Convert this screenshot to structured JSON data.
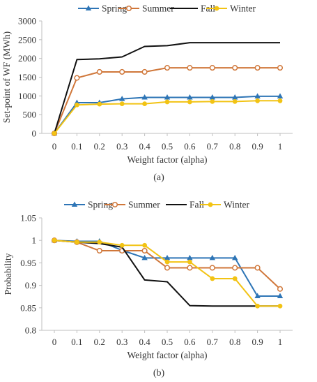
{
  "chart_data": [
    {
      "panel_label": "(a)",
      "type": "line",
      "xlabel": "Weight factor (alpha)",
      "ylabel": "Set-point of WF (MWh)",
      "x": [
        0,
        0.1,
        0.2,
        0.3,
        0.4,
        0.5,
        0.6,
        0.7,
        0.8,
        0.9,
        1
      ],
      "x_ticks": [
        "0",
        "0.1",
        "0.2",
        "0.3",
        "0.4",
        "0.5",
        "0.6",
        "0.7",
        "0.8",
        "0.9",
        "1"
      ],
      "ylim": [
        0,
        3000
      ],
      "y_ticks": [
        "0",
        "500",
        "1000",
        "1500",
        "2000",
        "2500",
        "3000"
      ],
      "grid": false,
      "legend_position": "top",
      "series": [
        {
          "name": "Spring",
          "color": "#2e75b6",
          "marker": "triangle",
          "values": [
            0,
            820,
            820,
            920,
            960,
            960,
            960,
            960,
            960,
            990,
            990
          ]
        },
        {
          "name": "Summer",
          "color": "#d0773a",
          "marker": "circle-open",
          "values": [
            0,
            1480,
            1640,
            1640,
            1640,
            1750,
            1750,
            1750,
            1750,
            1750,
            1750
          ]
        },
        {
          "name": "Fall",
          "color": "#111111",
          "marker": "none",
          "values": [
            0,
            1970,
            1990,
            2040,
            2320,
            2340,
            2420,
            2420,
            2420,
            2420,
            2420
          ]
        },
        {
          "name": "Winter",
          "color": "#f2c314",
          "marker": "circle",
          "values": [
            0,
            760,
            780,
            790,
            790,
            840,
            840,
            850,
            850,
            870,
            870
          ]
        }
      ]
    },
    {
      "panel_label": "(b)",
      "type": "line",
      "xlabel": "Weight factor (alpha)",
      "ylabel": "Probability",
      "x": [
        0,
        0.1,
        0.2,
        0.3,
        0.4,
        0.5,
        0.6,
        0.7,
        0.8,
        0.9,
        1
      ],
      "x_ticks": [
        "0",
        "0.1",
        "0.2",
        "0.3",
        "0.4",
        "0.5",
        "0.6",
        "0.7",
        "0.8",
        "0.9",
        "1"
      ],
      "ylim": [
        0.8,
        1.05
      ],
      "y_ticks": [
        "0.8",
        "0.85",
        "0.9",
        "0.95",
        "1",
        "1.05"
      ],
      "grid": false,
      "legend_position": "top",
      "series": [
        {
          "name": "Spring",
          "color": "#2e75b6",
          "marker": "triangle",
          "values": [
            1.0,
            0.998,
            0.998,
            0.978,
            0.961,
            0.961,
            0.961,
            0.961,
            0.961,
            0.876,
            0.876
          ]
        },
        {
          "name": "Summer",
          "color": "#d0773a",
          "marker": "circle-open",
          "values": [
            1.0,
            0.996,
            0.977,
            0.977,
            0.977,
            0.939,
            0.939,
            0.939,
            0.939,
            0.939,
            0.892
          ]
        },
        {
          "name": "Fall",
          "color": "#111111",
          "marker": "none",
          "values": [
            1.0,
            0.996,
            0.993,
            0.985,
            0.912,
            0.908,
            0.855,
            0.854,
            0.854,
            0.854,
            0.854
          ]
        },
        {
          "name": "Winter",
          "color": "#f2c314",
          "marker": "circle",
          "values": [
            1.0,
            0.996,
            0.996,
            0.989,
            0.989,
            0.952,
            0.952,
            0.915,
            0.915,
            0.854,
            0.854
          ]
        }
      ]
    }
  ]
}
